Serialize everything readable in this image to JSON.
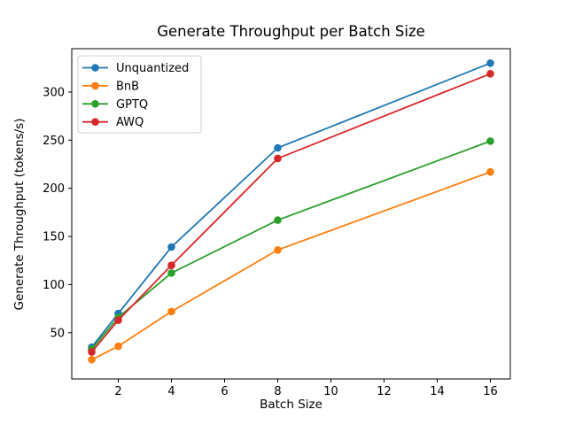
{
  "chart_data": {
    "type": "line",
    "title": "Generate Throughput per Batch Size",
    "xlabel": "Batch Size",
    "ylabel": "Generate Throughput (tokens/s)",
    "x": [
      1,
      2,
      4,
      8,
      16
    ],
    "series": [
      {
        "name": "Unquantized",
        "color": "#1f77b4",
        "values": [
          35,
          70,
          139,
          242,
          330
        ]
      },
      {
        "name": "BnB",
        "color": "#ff7f0e",
        "values": [
          22,
          36,
          72,
          136,
          217
        ]
      },
      {
        "name": "GPTQ",
        "color": "#2ca02c",
        "values": [
          33,
          66,
          112,
          167,
          249
        ]
      },
      {
        "name": "AWQ",
        "color": "#d62728",
        "values": [
          30,
          63,
          120,
          231,
          319
        ]
      }
    ],
    "xticks": [
      2,
      4,
      6,
      8,
      10,
      12,
      14,
      16
    ],
    "yticks": [
      50,
      100,
      150,
      200,
      250,
      300
    ],
    "xlim": [
      0.25,
      16.75
    ],
    "ylim": [
      2,
      345
    ],
    "grid": false,
    "legend_position": "upper left",
    "marker": "circle",
    "axes_color": "#000000",
    "legend_border_color": "#cccccc",
    "background_color": "#ffffff"
  }
}
